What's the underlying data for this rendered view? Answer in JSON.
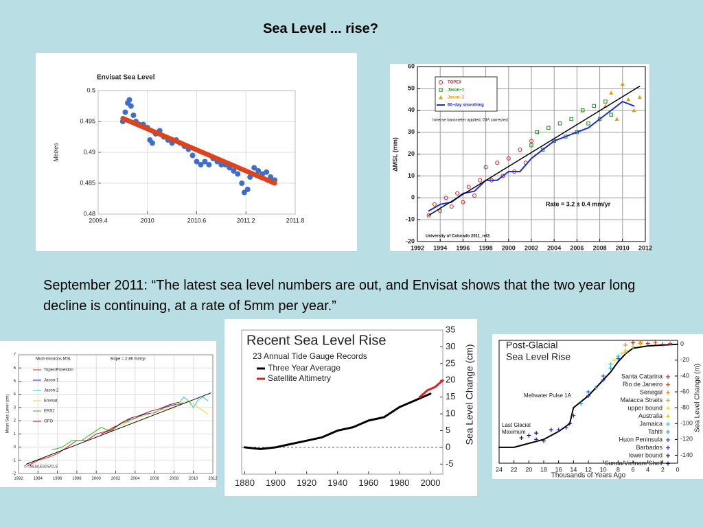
{
  "title": "Sea Level ... rise?",
  "quote": "September 2011: “The latest sea level numbers are out, and Envisat shows that the two year long decline is continuing, at a rate of 5mm per year.”",
  "chart_data": [
    {
      "type": "scatter",
      "title": "Envisat Sea Level",
      "ylabel": "Metres",
      "xlim": [
        2009.4,
        2011.8
      ],
      "xticks": [
        2009.4,
        2010,
        2010.6,
        2011.2,
        2011.8
      ],
      "ylim": [
        0.48,
        0.5
      ],
      "yticks": [
        0.48,
        0.485,
        0.49,
        0.495,
        0.5
      ],
      "grid": true,
      "series": [
        {
          "type": "scatter",
          "marker": "dot",
          "color": "#3d6fc8",
          "x": [
            2009.7,
            2009.73,
            2009.76,
            2009.78,
            2009.8,
            2009.83,
            2009.86,
            2009.9,
            2009.95,
            2010.0,
            2010.03,
            2010.06,
            2010.1,
            2010.15,
            2010.2,
            2010.25,
            2010.3,
            2010.35,
            2010.4,
            2010.45,
            2010.5,
            2010.55,
            2010.6,
            2010.65,
            2010.7,
            2010.75,
            2010.8,
            2010.85,
            2010.9,
            2010.95,
            2011.0,
            2011.05,
            2011.1,
            2011.15,
            2011.18,
            2011.22,
            2011.25,
            2011.3,
            2011.35,
            2011.4,
            2011.45,
            2011.5,
            2011.55
          ],
          "values": [
            0.495,
            0.4965,
            0.498,
            0.4985,
            0.4975,
            0.496,
            0.495,
            0.4945,
            0.4945,
            0.494,
            0.492,
            0.4915,
            0.493,
            0.4935,
            0.4925,
            0.492,
            0.4915,
            0.492,
            0.4915,
            0.491,
            0.4905,
            0.4895,
            0.4885,
            0.488,
            0.4885,
            0.488,
            0.489,
            0.4885,
            0.488,
            0.488,
            0.4875,
            0.487,
            0.4865,
            0.485,
            0.4835,
            0.484,
            0.486,
            0.4875,
            0.487,
            0.4865,
            0.4868,
            0.486,
            0.4855
          ]
        },
        {
          "type": "line",
          "color": "#d9451e",
          "width": 7,
          "x": [
            2009.7,
            2011.55
          ],
          "values": [
            0.4955,
            0.485
          ]
        }
      ]
    },
    {
      "type": "scatter",
      "ylabel": "ΔMSL (mm)",
      "xlim": [
        1992,
        2012
      ],
      "xticks": [
        1992,
        1994,
        1996,
        1998,
        2000,
        2002,
        2004,
        2006,
        2008,
        2010,
        2012
      ],
      "ylim": [
        -20,
        60
      ],
      "yticks": [
        -20,
        -10,
        0,
        10,
        20,
        30,
        40,
        50,
        60
      ],
      "grid": true,
      "annotations": [
        "Inverse barometer applied, GIA corrected",
        "Rate = 3.2 ± 0.4 mm/yr",
        "University of Colorado 2011_rel3"
      ],
      "series": [
        {
          "name": "TOPEX",
          "type": "scatter",
          "marker": "circle",
          "color": "#d62020",
          "x": [
            1993,
            1993.5,
            1994,
            1994.5,
            1995,
            1995.5,
            1996,
            1996.5,
            1997,
            1997.5,
            1998,
            1998.5,
            1999,
            1999.5,
            2000,
            2000.5,
            2001,
            2001.5,
            2002
          ],
          "values": [
            -8,
            -3,
            -6,
            0,
            -4,
            2,
            -2,
            5,
            1,
            8,
            14,
            8,
            16,
            10,
            18,
            12,
            22,
            16,
            26
          ]
        },
        {
          "name": "Jason−1",
          "type": "scatter",
          "marker": "square",
          "color": "#1a8a1a",
          "x": [
            2002,
            2002.5,
            2003,
            2003.5,
            2004,
            2004.5,
            2005,
            2005.5,
            2006,
            2006.5,
            2007,
            2007.5,
            2008,
            2008.5,
            2009
          ],
          "values": [
            24,
            30,
            22,
            32,
            26,
            34,
            28,
            36,
            30,
            40,
            34,
            42,
            36,
            44,
            38
          ]
        },
        {
          "name": "Jason−2",
          "type": "scatter",
          "marker": "triangle",
          "color": "#e89a10",
          "x": [
            2008.5,
            2009,
            2009.5,
            2010,
            2010.5,
            2011,
            2011.5
          ],
          "values": [
            42,
            48,
            36,
            52,
            45,
            40,
            46
          ]
        },
        {
          "name": "60−day smoothing",
          "type": "line",
          "color": "#1a2ad6",
          "width": 2,
          "x": [
            1993,
            1994,
            1995,
            1996,
            1997,
            1998,
            1999,
            2000,
            2001,
            2002,
            2003,
            2004,
            2005,
            2006,
            2007,
            2008,
            2009,
            2010,
            2011
          ],
          "values": [
            -6,
            -3,
            -2,
            2,
            3,
            8,
            8,
            12,
            12,
            18,
            22,
            26,
            28,
            30,
            32,
            36,
            40,
            44,
            42
          ]
        },
        {
          "type": "line",
          "color": "#000000",
          "width": 1.5,
          "x": [
            1993,
            2011.5
          ],
          "values": [
            -8,
            51
          ]
        }
      ]
    },
    {
      "type": "line",
      "title": "Multi-missions MSL",
      "ylabel": "Mean Sea Level (cm)",
      "xlim": [
        1992,
        2012
      ],
      "xticks": [
        1992,
        1994,
        1996,
        1998,
        2000,
        2002,
        2004,
        2006,
        2008,
        2010,
        2012
      ],
      "ylim": [
        -2,
        7
      ],
      "yticks": [
        -2,
        -1,
        0,
        1,
        2,
        3,
        4,
        5,
        6,
        7
      ],
      "grid": true,
      "annotations": [
        "Slope = 2.86 mm/yr",
        "© CNES/LEGOS/CLS"
      ],
      "series": [
        {
          "name": "Topex/Poseidon",
          "type": "line",
          "color": "#e02020",
          "width": 1,
          "x": [
            1993,
            1994,
            1995,
            1996,
            1997,
            1998,
            1999,
            2000,
            2001,
            2002
          ],
          "values": [
            -1.4,
            -1,
            -0.8,
            -0.5,
            0,
            0.5,
            0.5,
            1,
            1.2,
            1.6
          ]
        },
        {
          "name": "Jason-1",
          "type": "line",
          "color": "#1a2ad6",
          "width": 1,
          "x": [
            2002,
            2003,
            2004,
            2005,
            2006,
            2007,
            2008,
            2009
          ],
          "values": [
            1.5,
            2,
            2.2,
            2.5,
            2.6,
            3,
            3.2,
            3.3
          ]
        },
        {
          "name": "Jason-2",
          "type": "line",
          "color": "#20c8e0",
          "width": 1,
          "x": [
            2008.5,
            2009,
            2009.5,
            2010,
            2010.5,
            2011,
            2011.5
          ],
          "values": [
            3.3,
            3.8,
            3.5,
            3,
            3.6,
            3.8,
            3.5
          ]
        },
        {
          "name": "Envisat",
          "type": "line",
          "color": "#e8e020",
          "width": 1,
          "x": [
            2002.5,
            2003.5,
            2004.5,
            2005.5,
            2006.5,
            2007.5,
            2008.5,
            2009.5,
            2010.5,
            2011.5
          ],
          "values": [
            1.6,
            2,
            2.3,
            2.5,
            2.8,
            2.9,
            3.3,
            3.5,
            3,
            2.5
          ]
        },
        {
          "name": "ERS2",
          "type": "line",
          "color": "#20c020",
          "width": 1,
          "x": [
            1995.5,
            1996.5,
            1997.5,
            1998.5,
            1999.5,
            2000.5,
            2001.5,
            2002.5,
            2003.5
          ],
          "values": [
            -0.2,
            0,
            0.5,
            0.5,
            1,
            1.5,
            1.2,
            1.8,
            2
          ]
        },
        {
          "name": "GFO",
          "type": "line",
          "color": "#a01010",
          "width": 1,
          "x": [
            2000.5,
            2001.5,
            2002.5,
            2003.5,
            2004.5,
            2005.5,
            2006.5,
            2007.5,
            2008.5
          ],
          "values": [
            1,
            1.3,
            1.8,
            2.2,
            2.4,
            2.7,
            2.9,
            3.2,
            3.4
          ]
        },
        {
          "type": "line",
          "color": "#000000",
          "width": 1,
          "x": [
            1992.8,
            2011.8
          ],
          "values": [
            -1.3,
            4.1
          ]
        }
      ]
    },
    {
      "type": "line",
      "title": "Recent Sea Level Rise",
      "subtitle": "23 Annual Tide Gauge Records",
      "ylabel": "Sea Level Change (cm)",
      "yaxis_side": "right",
      "zero_line": true,
      "grid": false,
      "xlim": [
        1878,
        2008
      ],
      "xticks": [
        1880,
        1900,
        1920,
        1940,
        1960,
        1980,
        2000
      ],
      "ylim": [
        -8,
        35
      ],
      "yticks": [
        -5,
        0,
        5,
        10,
        15,
        20,
        25,
        30,
        35
      ],
      "series": [
        {
          "name": "Three Year Average",
          "type": "line",
          "color": "#000000",
          "width": 3,
          "x": [
            1880,
            1890,
            1900,
            1910,
            1920,
            1930,
            1940,
            1950,
            1960,
            1970,
            1980,
            1990,
            2000
          ],
          "values": [
            0,
            -0.5,
            0,
            1,
            2,
            3,
            5,
            6,
            8,
            9,
            12,
            14,
            16
          ]
        },
        {
          "name": "Satellite Altimetry",
          "type": "line",
          "color": "#e02020",
          "width": 3,
          "x": [
            1993,
            1998,
            2003,
            2008
          ],
          "values": [
            15,
            17,
            18,
            20
          ]
        }
      ]
    },
    {
      "type": "scatter",
      "title_lines": [
        "Post-Glacial",
        "Sea Level Rise"
      ],
      "ylabel": "Sea Level Change (m)",
      "xlabel": "Thousands of Years Ago",
      "yaxis_side": "right",
      "grid": false,
      "annotations": [
        "Meltwater Pulse 1A",
        "Last Glacial",
        "Maximum"
      ],
      "xlim": [
        24,
        0
      ],
      "xticks": [
        24,
        22,
        20,
        18,
        16,
        14,
        12,
        10,
        8,
        6,
        4,
        2,
        0
      ],
      "ylim": [
        -150,
        5
      ],
      "yticks": [
        0,
        -20,
        -40,
        -60,
        -80,
        -100,
        -120,
        -140
      ],
      "series": [
        {
          "type": "line",
          "color": "#000000",
          "width": 2,
          "x": [
            24,
            22,
            20,
            18,
            16,
            14.5,
            14,
            12,
            11,
            10,
            9,
            8,
            7,
            6,
            4,
            2,
            0
          ],
          "values": [
            -130,
            -130,
            -125,
            -120,
            -110,
            -100,
            -80,
            -65,
            -55,
            -45,
            -35,
            -22,
            -12,
            -5,
            -2,
            -1,
            0
          ]
        },
        {
          "name": "Santa Catarina",
          "type": "scatter",
          "marker": "plus",
          "color": "#e02020",
          "x": [
            6,
            4,
            2
          ],
          "values": [
            2,
            1,
            0
          ]
        },
        {
          "name": "Rio de Janeiro",
          "type": "scatter",
          "marker": "plus",
          "color": "#e05010",
          "x": [
            5,
            3,
            1
          ],
          "values": [
            3,
            2,
            1
          ]
        },
        {
          "name": "Senegal",
          "type": "scatter",
          "marker": "plus",
          "color": "#f08000",
          "x": [
            7,
            5
          ],
          "values": [
            -1,
            1
          ]
        },
        {
          "name": "Malacca Straits",
          "type": "scatter",
          "marker": "plus",
          "color": "#e0b000",
          "x": [
            9,
            7
          ],
          "values": [
            -30,
            -10
          ]
        },
        {
          "name": "upper bound",
          "type": "scatter",
          "marker": "plus",
          "color": "#f0e000",
          "x": [
            8.5,
            7.5
          ],
          "values": [
            -20,
            -12
          ]
        },
        {
          "name": "Australia",
          "type": "scatter",
          "marker": "plus",
          "color": "#c8d000",
          "x": [
            7,
            6,
            5
          ],
          "values": [
            -8,
            -3,
            0
          ]
        },
        {
          "name": "Jamaica",
          "type": "scatter",
          "marker": "plus",
          "color": "#20d8d0",
          "x": [
            9,
            8
          ],
          "values": [
            -25,
            -15
          ]
        },
        {
          "name": "Tahiti",
          "type": "scatter",
          "marker": "plus",
          "color": "#10a8f0",
          "x": [
            13,
            11,
            9
          ],
          "values": [
            -75,
            -55,
            -30
          ]
        },
        {
          "name": "Huon Peninsula",
          "type": "scatter",
          "marker": "plus",
          "color": "#1060e0",
          "x": [
            12,
            10,
            8
          ],
          "values": [
            -60,
            -40,
            -18
          ]
        },
        {
          "name": "Barbados",
          "type": "scatter",
          "marker": "plus",
          "color": "#2030c0",
          "x": [
            19,
            16,
            14,
            12,
            10
          ],
          "values": [
            -120,
            -108,
            -90,
            -65,
            -45
          ]
        },
        {
          "name": "lower bound",
          "type": "scatter",
          "marker": "plus",
          "color": "#202090",
          "x": [
            18,
            15
          ],
          "values": [
            -122,
            -105
          ]
        },
        {
          "name": "Sunda/Vietnam Shelf",
          "type": "scatter",
          "marker": "plus",
          "color": "#101070",
          "x": [
            21,
            20,
            19,
            17,
            14.5
          ],
          "values": [
            -118,
            -115,
            -112,
            -108,
            -100
          ]
        }
      ]
    }
  ]
}
